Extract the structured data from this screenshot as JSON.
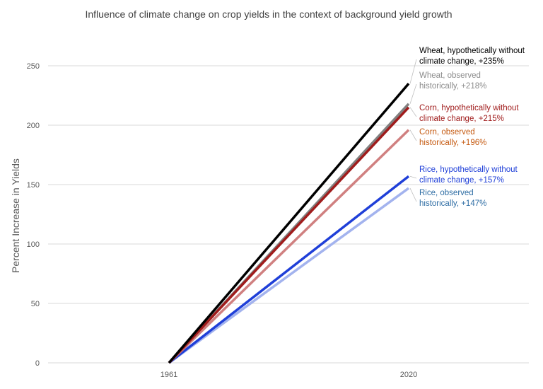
{
  "chart_data": {
    "type": "line",
    "title": "Influence of climate change on crop yields in the context of background yield growth",
    "ylabel": "Percent Increase in Yields",
    "xlabel": "",
    "x": [
      "1961",
      "2020"
    ],
    "ylim": [
      0,
      250
    ],
    "yticks": [
      0,
      50,
      100,
      150,
      200,
      250
    ],
    "grid": true,
    "legend": "none",
    "series": [
      {
        "name": "Wheat, hypothetically without climate change, +235%",
        "values": [
          0,
          235
        ],
        "color": "#000000",
        "label_color": "#000000",
        "label_lines": [
          "Wheat, hypothetically without",
          "climate change, +235%"
        ]
      },
      {
        "name": "Wheat, observed historically, +218%",
        "values": [
          0,
          218
        ],
        "color": "#808080",
        "label_color": "#8c8c8c",
        "label_lines": [
          "Wheat, observed",
          "historically, +218%"
        ]
      },
      {
        "name": "Corn, hypothetically without climate change, +215%",
        "values": [
          0,
          215
        ],
        "color": "#a01c1c",
        "label_color": "#a01c1c",
        "label_lines": [
          "Corn, hypothetically without",
          "climate change, +215%"
        ]
      },
      {
        "name": "Corn, observed historically, +196%",
        "values": [
          0,
          196
        ],
        "color": "#d08080",
        "label_color": "#c55a11",
        "label_lines": [
          "Corn,  observed",
          "historically, +196%"
        ]
      },
      {
        "name": "Rice, hypothetically without climate change, +157%",
        "values": [
          0,
          157
        ],
        "color": "#1f3fd8",
        "label_color": "#1f3fd8",
        "label_lines": [
          "Rice, hypothetically without",
          "climate change, +157%"
        ]
      },
      {
        "name": "Rice, observed historically, +147%",
        "values": [
          0,
          147
        ],
        "color": "#a3b3ee",
        "label_color": "#2e6da4",
        "label_lines": [
          "Rice, observed",
          "historically, +147%"
        ]
      }
    ]
  }
}
